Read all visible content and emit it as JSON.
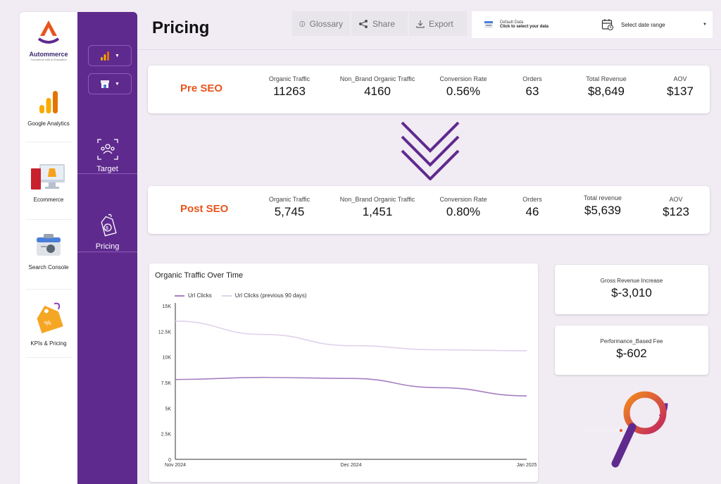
{
  "brand": {
    "name": "Autommerce",
    "tagline": "Commerce with AI Education"
  },
  "rail": {
    "items": [
      {
        "label": "Google Analytics",
        "icon": "google-analytics-icon"
      },
      {
        "label": "Ecommerce",
        "icon": "ecommerce-icon"
      },
      {
        "label": "Search Console",
        "icon": "search-console-icon"
      },
      {
        "label": "KPIs & Pricing",
        "icon": "price-tag-icon"
      }
    ]
  },
  "nav": {
    "items": [
      {
        "label": "Target",
        "icon": "target-icon"
      },
      {
        "label": "Pricing",
        "icon": "pricing-icon"
      }
    ]
  },
  "header": {
    "title": "Pricing",
    "toolbar": {
      "glossary": "Glossary",
      "share": "Share",
      "export": "Export"
    },
    "data_source": {
      "line1": "Default Data",
      "line2": "Click to select your data"
    },
    "date_range": "Select date range"
  },
  "pre_seo": {
    "label": "Pre SEO",
    "metrics": [
      {
        "label": "Organic Traffic",
        "value": "11263"
      },
      {
        "label": "Non_Brand Organic Traffic",
        "value": "4160"
      },
      {
        "label": "Conversion Rate",
        "value": "0.56%"
      },
      {
        "label": "Orders",
        "value": "63"
      },
      {
        "label": "Total Revenue",
        "value": "$8,649"
      },
      {
        "label": "AOV",
        "value": "$137"
      }
    ]
  },
  "post_seo": {
    "label": "Post SEO",
    "metrics": [
      {
        "label": "Organic Traffic",
        "value": "5,745"
      },
      {
        "label": "Non_Brand Organic Traffic",
        "value": "1,451"
      },
      {
        "label": "Conversion Rate",
        "value": "0.80%"
      },
      {
        "label": "Orders",
        "value": "46"
      },
      {
        "label": "Total revenue",
        "value": "$5,639"
      },
      {
        "label": "AOV",
        "value": "$123"
      }
    ]
  },
  "kpis": [
    {
      "label": "Gross Revenue Increase",
      "value": "$-3,010"
    },
    {
      "label": "Performance_Based Fee",
      "value": "$-602"
    }
  ],
  "colors": {
    "purple": "#5f2a8e",
    "accent_orange": "#e8551c",
    "series_main": "#a77fc2",
    "series_prev": "#e0d2ea"
  },
  "chart_data": {
    "type": "line",
    "title": "Organic Traffic Over Time",
    "x": [
      "Nov 2024",
      "Dec 2024",
      "Jan 2025"
    ],
    "x_ticks": [
      "Nov 2024",
      "Dec 2024",
      "Jan 2025"
    ],
    "y_ticks": [
      "0",
      "2.5K",
      "5K",
      "7.5K",
      "10K",
      "12.5K",
      "15K"
    ],
    "ylim": [
      0,
      15000
    ],
    "series": [
      {
        "name": "Url Clicks",
        "points": [
          [
            0,
            7800
          ],
          [
            0.25,
            8000
          ],
          [
            0.5,
            7900
          ],
          [
            0.75,
            7000
          ],
          [
            1,
            6200
          ]
        ]
      },
      {
        "name": "Url Clicks (previous 90 days)",
        "points": [
          [
            0,
            13500
          ],
          [
            0.25,
            12200
          ],
          [
            0.5,
            11100
          ],
          [
            0.75,
            10700
          ],
          [
            1,
            10600
          ]
        ]
      }
    ],
    "grid": false,
    "legend": "top-left"
  }
}
